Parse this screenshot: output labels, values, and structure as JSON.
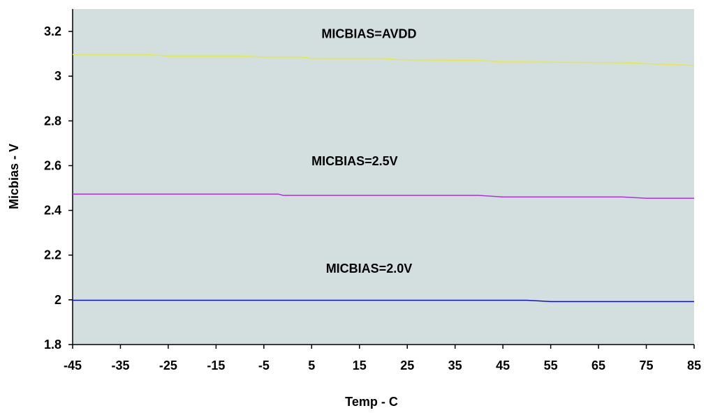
{
  "chart_data": {
    "type": "line",
    "xlabel": "Temp - C",
    "ylabel": "Micbias - V",
    "xlim": [
      -45,
      85
    ],
    "ylim": [
      1.8,
      3.3
    ],
    "x_ticks": [
      "-45",
      "-35",
      "-25",
      "-15",
      "-5",
      "5",
      "15",
      "25",
      "35",
      "45",
      "55",
      "65",
      "75",
      "85"
    ],
    "y_ticks": [
      "1.8",
      "2",
      "2.2",
      "2.4",
      "2.6",
      "2.8",
      "3",
      "3.2"
    ],
    "grid": false,
    "plot_background": "#D3DEDE",
    "series": [
      {
        "label": "MICBIAS=AVDD",
        "color": "#E8E845",
        "x": [
          -45,
          -30,
          -25,
          -10,
          -5,
          3,
          5,
          20,
          23,
          40,
          45,
          70,
          85
        ],
        "y": [
          3.097,
          3.097,
          3.09,
          3.09,
          3.085,
          3.085,
          3.079,
          3.079,
          3.074,
          3.07,
          3.064,
          3.06,
          3.048
        ]
      },
      {
        "label": "MICBIAS=2.5V",
        "color": "#B030E0",
        "x": [
          -45,
          -2,
          -1,
          40,
          45,
          70,
          75,
          85
        ],
        "y": [
          2.473,
          2.473,
          2.467,
          2.467,
          2.46,
          2.46,
          2.454,
          2.454
        ]
      },
      {
        "label": "MICBIAS=2.0V",
        "color": "#1010CC",
        "x": [
          -45,
          50,
          55,
          85
        ],
        "y": [
          1.998,
          1.998,
          1.992,
          1.992
        ]
      }
    ],
    "annotations": [
      {
        "text": "MICBIAS=AVDD",
        "x": 17,
        "y": 3.19
      },
      {
        "text": "MICBIAS=2.5V",
        "x": 14,
        "y": 2.62
      },
      {
        "text": "MICBIAS=2.0V",
        "x": 17,
        "y": 2.14
      }
    ]
  }
}
